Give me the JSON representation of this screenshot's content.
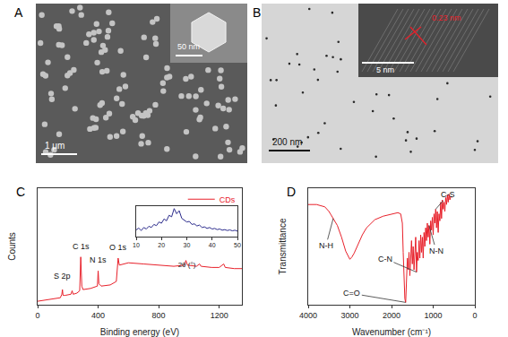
{
  "panels": [
    {
      "label": "A",
      "scale_bar": "1 μm",
      "inset_scale_bar": "50 nm"
    },
    {
      "label": "B",
      "scale_bar": "200 nm",
      "inset_scale_bar": "5 nm",
      "lattice_spacing": "0.23 nm"
    }
  ],
  "chart_data": [
    {
      "panel": "C",
      "type": "line",
      "x_label": "Binding energy (eV)",
      "y_label": "Counts",
      "x": [
        0,
        50,
        100,
        150,
        160,
        164,
        168,
        180,
        220,
        228,
        235,
        260,
        278,
        285,
        292,
        300,
        350,
        395,
        400,
        405,
        420,
        480,
        520,
        532,
        540,
        600,
        700,
        800,
        900,
        970,
        980,
        990,
        1050,
        1070,
        1080,
        1150,
        1200,
        1230,
        1240,
        1300,
        1350
      ],
      "series": [
        {
          "name": "CDs",
          "color": "#e8202a",
          "values": [
            3,
            4,
            5,
            6,
            9,
            13,
            8,
            8,
            9,
            12,
            9,
            10,
            12,
            41,
            16,
            13,
            14,
            16,
            29,
            18,
            16,
            17,
            20,
            40,
            34,
            36,
            35,
            34,
            33,
            34,
            38,
            34,
            33,
            35,
            33,
            32,
            32,
            35,
            32,
            31,
            31
          ]
        }
      ],
      "xlim": [
        0,
        1350
      ],
      "xticks": [
        0,
        400,
        800,
        1200
      ],
      "ylim": [
        0,
        100
      ],
      "tick_labels": "x",
      "legend": "upper right",
      "annotations": [
        {
          "text": "S 2p",
          "x": 164,
          "y": 19
        },
        {
          "text": "C 1s",
          "x": 285,
          "y": 45
        },
        {
          "text": "N 1s",
          "x": 400,
          "y": 33
        },
        {
          "text": "O 1s",
          "x": 532,
          "y": 44
        }
      ],
      "inset": {
        "type": "line",
        "x_label": "2θ (°)",
        "x": [
          10,
          11,
          12,
          13,
          14,
          15,
          16,
          17,
          18,
          19,
          20,
          21,
          22,
          23,
          24,
          25,
          26,
          27,
          28,
          29,
          30,
          31,
          32,
          33,
          34,
          35,
          36,
          37,
          38,
          39,
          40,
          41,
          42,
          43,
          44,
          45,
          46,
          47,
          48,
          49,
          50
        ],
        "series": [
          {
            "color": "#2b2b8c",
            "values": [
              22,
              28,
              20,
              30,
              25,
              34,
              30,
              40,
              36,
              48,
              44,
              58,
              52,
              70,
              65,
              92,
              75,
              85,
              60,
              55,
              48,
              50,
              40,
              42,
              35,
              38,
              30,
              32,
              27,
              30,
              25,
              27,
              23,
              25,
              21,
              23,
              20,
              22,
              19,
              21,
              18
            ]
          }
        ],
        "xlim": [
          10,
          50
        ],
        "xticks": [
          10,
          20,
          30,
          40,
          50
        ],
        "ylim": [
          0,
          100
        ],
        "tick_labels": "x"
      }
    },
    {
      "panel": "D",
      "type": "line",
      "x_label": "Wavenumber (cm⁻¹)",
      "y_label": "Transmittance",
      "x": [
        4000,
        3800,
        3600,
        3500,
        3450,
        3400,
        3300,
        3200,
        3100,
        3000,
        2950,
        2900,
        2800,
        2700,
        2600,
        2400,
        2200,
        2000,
        1850,
        1780,
        1740,
        1720,
        1700,
        1680,
        1660,
        1640,
        1620,
        1600,
        1580,
        1560,
        1540,
        1520,
        1500,
        1480,
        1460,
        1440,
        1420,
        1400,
        1380,
        1360,
        1340,
        1320,
        1300,
        1280,
        1260,
        1240,
        1220,
        1200,
        1180,
        1160,
        1140,
        1120,
        1100,
        1080,
        1060,
        1040,
        1020,
        1000,
        980,
        960,
        940,
        920,
        900,
        880,
        860,
        840,
        820,
        800,
        780,
        760,
        740,
        720,
        700,
        680,
        660,
        640,
        620,
        600,
        580,
        550
      ],
      "series": [
        {
          "color": "#e8202a",
          "values": [
            86,
            86,
            84,
            80,
            77,
            74,
            68,
            58,
            46,
            39,
            41,
            44,
            52,
            60,
            66,
            73,
            76,
            78,
            79,
            78,
            70,
            45,
            20,
            5,
            2,
            18,
            40,
            30,
            45,
            25,
            42,
            55,
            35,
            50,
            30,
            48,
            58,
            28,
            45,
            38,
            55,
            40,
            60,
            45,
            58,
            40,
            62,
            50,
            66,
            55,
            70,
            58,
            68,
            52,
            72,
            64,
            75,
            60,
            78,
            70,
            82,
            66,
            80,
            62,
            78,
            72,
            88,
            74,
            90,
            82,
            88,
            80,
            92,
            86,
            94,
            88,
            95,
            90,
            93,
            92
          ]
        }
      ],
      "xlim": [
        4000,
        0
      ],
      "xticks": [
        4000,
        3000,
        2000,
        1000,
        0
      ],
      "ylim": [
        0,
        100
      ],
      "tick_labels": "x",
      "annotations": [
        {
          "text": "N-H",
          "x": 3400,
          "y": 74
        },
        {
          "text": "C=O",
          "x": 1660,
          "y": 2
        },
        {
          "text": "C-N",
          "x": 1400,
          "y": 28
        },
        {
          "text": "N-N",
          "x": 1100,
          "y": 68
        },
        {
          "text": "C-S",
          "x": 940,
          "y": 82
        }
      ]
    }
  ]
}
